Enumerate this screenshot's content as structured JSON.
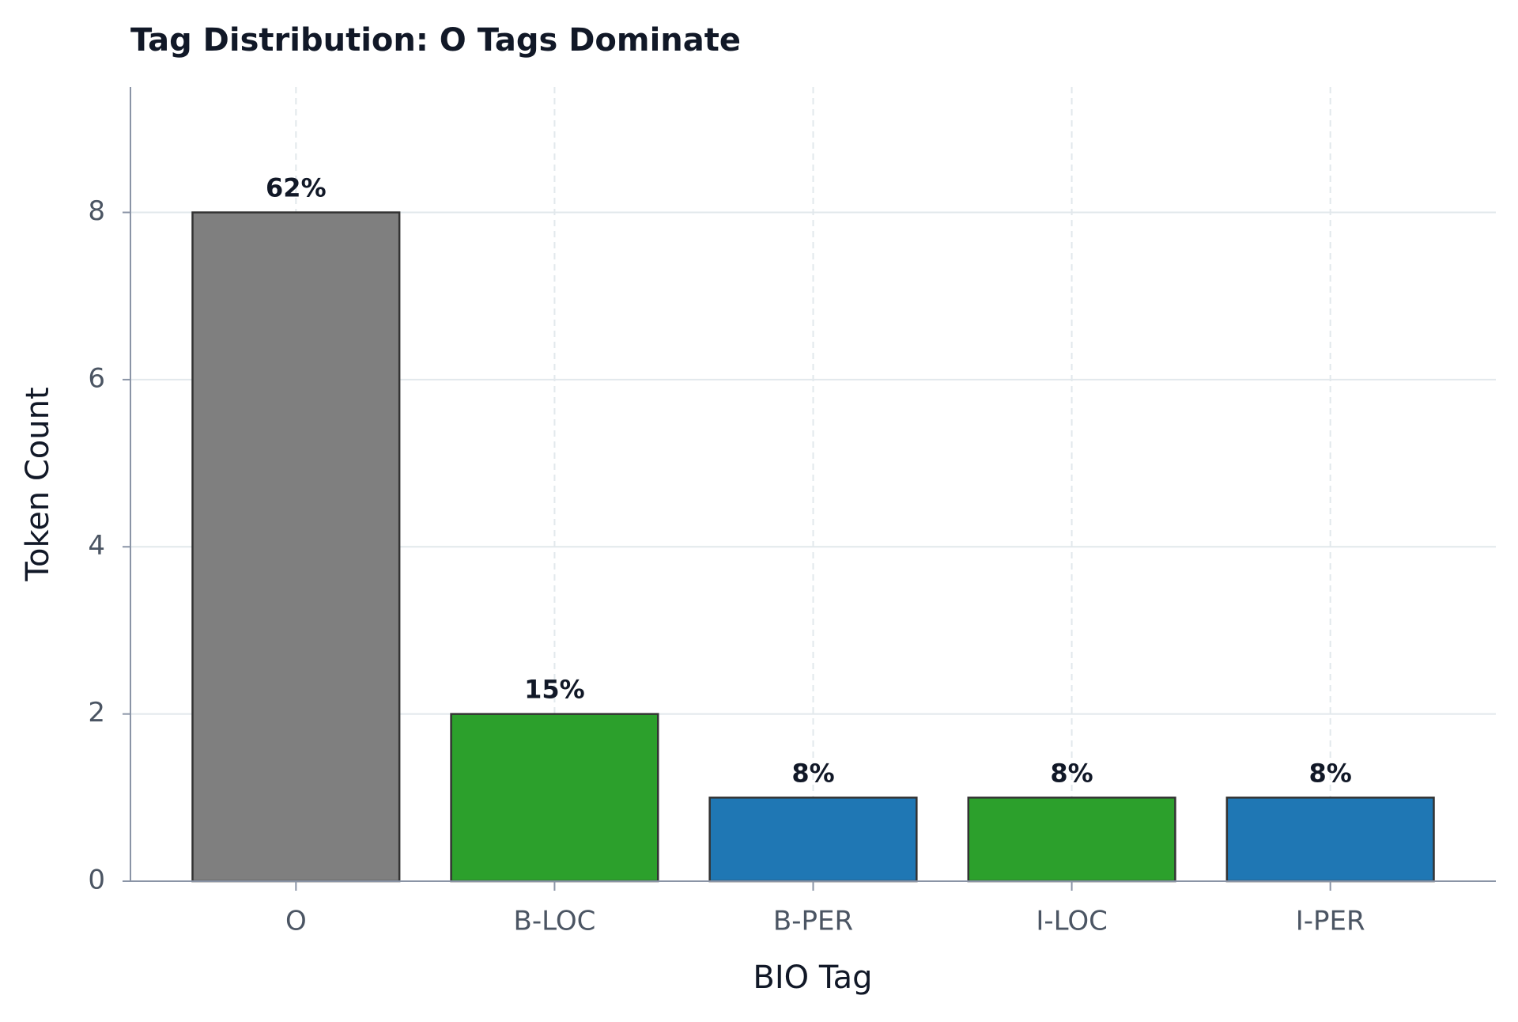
{
  "chart_data": {
    "type": "bar",
    "title": "Tag Distribution: O Tags Dominate",
    "x_label": "BIO Tag",
    "y_label": "Token Count",
    "categories": [
      "O",
      "B-LOC",
      "B-PER",
      "I-LOC",
      "I-PER"
    ],
    "values": [
      8,
      2,
      1,
      1,
      1
    ],
    "percent_labels": [
      "62%",
      "15%",
      "8%",
      "8%",
      "8%"
    ],
    "colors": [
      "#7f7f7f",
      "#2ca02c",
      "#1f77b4",
      "#2ca02c",
      "#1f77b4"
    ],
    "ylim": [
      0,
      9.5
    ],
    "yticks": [
      0,
      2,
      4,
      6,
      8
    ],
    "grid": true
  }
}
